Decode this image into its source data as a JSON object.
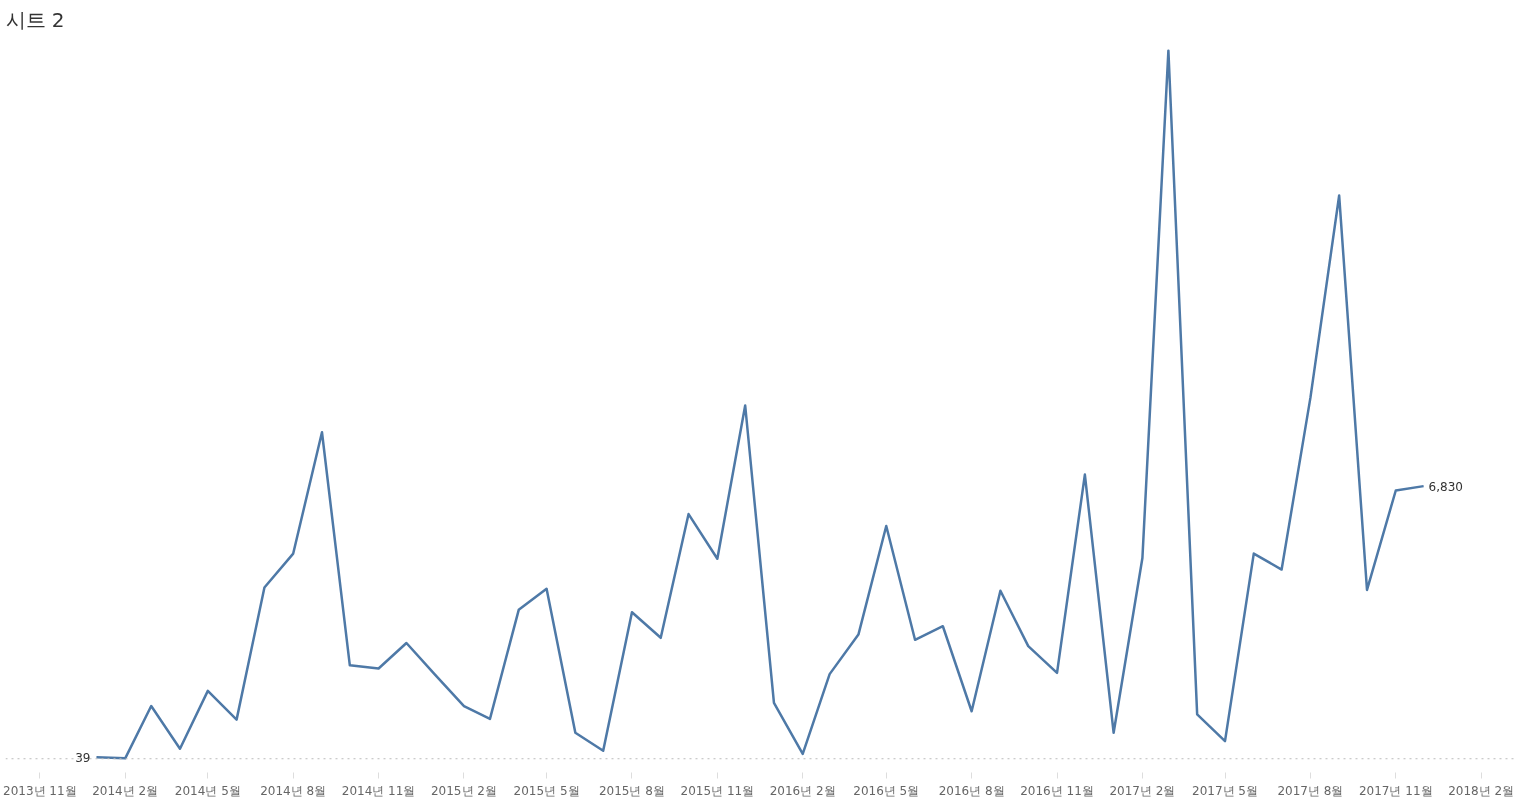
{
  "chart_data": {
    "type": "line",
    "title": "시트 2",
    "x": [
      "2014-01",
      "2014-02",
      "2014-03",
      "2014-04",
      "2014-05",
      "2014-06",
      "2014-07",
      "2014-08",
      "2014-09",
      "2014-10",
      "2014-11",
      "2014-12",
      "2015-01",
      "2015-02",
      "2015-03",
      "2015-04",
      "2015-05",
      "2015-06",
      "2015-07",
      "2015-08",
      "2015-09",
      "2015-10",
      "2015-11",
      "2015-12",
      "2016-01",
      "2016-02",
      "2016-03",
      "2016-04",
      "2016-05",
      "2016-06",
      "2016-07",
      "2016-08",
      "2016-09",
      "2016-10",
      "2016-11",
      "2016-12",
      "2017-01",
      "2017-02",
      "2017-03",
      "2017-04",
      "2017-05",
      "2017-06",
      "2017-07",
      "2017-08",
      "2017-09",
      "2017-10",
      "2017-11",
      "2017-12"
    ],
    "series": [
      {
        "color": "#4e79a7",
        "values": [
          39,
          10,
          1320,
          250,
          1700,
          980,
          4290,
          5140,
          8180,
          2340,
          2260,
          2900,
          2100,
          1320,
          1000,
          3730,
          4260,
          650,
          200,
          3670,
          3030,
          6130,
          5010,
          8850,
          1400,
          120,
          2120,
          3110,
          5830,
          2980,
          3320,
          1190,
          4210,
          2820,
          2150,
          7120,
          650,
          5030,
          17740,
          1110,
          440,
          5140,
          4740,
          9040,
          14110,
          4230,
          6720,
          6830
        ],
        "value_labels": [
          "39",
          null,
          null,
          null,
          null,
          null,
          null,
          null,
          null,
          null,
          null,
          null,
          null,
          null,
          null,
          null,
          null,
          null,
          null,
          null,
          null,
          null,
          null,
          null,
          null,
          null,
          null,
          null,
          null,
          null,
          null,
          null,
          null,
          null,
          null,
          null,
          null,
          null,
          null,
          null,
          null,
          null,
          null,
          null,
          null,
          null,
          null,
          "6,830"
        ]
      }
    ],
    "xlim": [
      "2013-09-25",
      "2018-03-10"
    ],
    "xticks": [
      {
        "value": "2013-11",
        "label": "2013년 11월"
      },
      {
        "value": "2014-02",
        "label": "2014년 2월"
      },
      {
        "value": "2014-05",
        "label": "2014년 5월"
      },
      {
        "value": "2014-08",
        "label": "2014년 8월"
      },
      {
        "value": "2014-11",
        "label": "2014년 11월"
      },
      {
        "value": "2015-02",
        "label": "2015년 2월"
      },
      {
        "value": "2015-05",
        "label": "2015년 5월"
      },
      {
        "value": "2015-08",
        "label": "2015년 8월"
      },
      {
        "value": "2015-11",
        "label": "2015년 11월"
      },
      {
        "value": "2016-02",
        "label": "2016년 2월"
      },
      {
        "value": "2016-05",
        "label": "2016년 5월"
      },
      {
        "value": "2016-08",
        "label": "2016년 8월"
      },
      {
        "value": "2016-11",
        "label": "2016년 11월"
      },
      {
        "value": "2017-02",
        "label": "2017년 2월"
      },
      {
        "value": "2017-05",
        "label": "2017년 5월"
      },
      {
        "value": "2017-08",
        "label": "2017년 8월"
      },
      {
        "value": "2017-11",
        "label": "2017년 11월"
      },
      {
        "value": "2018-02",
        "label": "2018년 2월"
      }
    ],
    "ref_lines": [
      {
        "axis": "y",
        "value": 0,
        "label": null,
        "color": "#bbbbbb",
        "line_style": "dotted"
      }
    ],
    "tick_labels": "x",
    "grid": false,
    "marker": "none",
    "line_style": "solid"
  }
}
